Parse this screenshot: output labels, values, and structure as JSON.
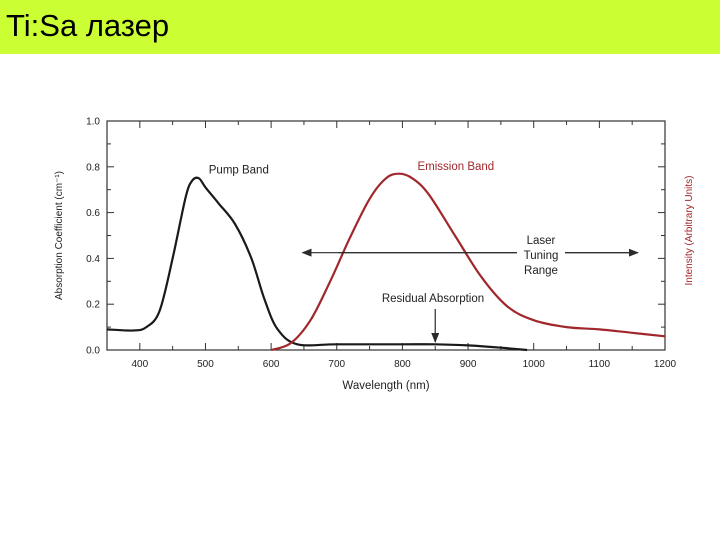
{
  "slide": {
    "title": "Ti:Sa лазер",
    "title_bar_color": "#ccff33"
  },
  "chart_data": {
    "type": "line",
    "xlabel": "Wavelength (nm)",
    "ylabel_left": "Absorption Coefficient (cm⁻¹)",
    "ylabel_right": "Intensity (Arbitrary Units)",
    "xlim": [
      350,
      1200
    ],
    "ylim": [
      0,
      1.0
    ],
    "x_ticks": [
      400,
      500,
      600,
      700,
      800,
      900,
      1000,
      1100,
      1200
    ],
    "y_ticks": [
      0.0,
      0.2,
      0.4,
      0.6,
      0.8,
      1.0
    ],
    "y_tick_labels": [
      "0.0",
      "0.2",
      "0.4",
      "0.6",
      "0.8",
      "1.0"
    ],
    "grid": false,
    "series": [
      {
        "name": "Pump Band",
        "color": "#1a1a1a",
        "x": [
          350,
          390,
          410,
          430,
          450,
          470,
          480,
          490,
          500,
          520,
          545,
          570,
          590,
          610,
          640,
          700,
          800,
          850,
          900,
          950,
          990
        ],
        "y": [
          0.09,
          0.085,
          0.1,
          0.17,
          0.4,
          0.67,
          0.74,
          0.75,
          0.71,
          0.64,
          0.55,
          0.4,
          0.22,
          0.09,
          0.025,
          0.025,
          0.025,
          0.025,
          0.02,
          0.01,
          0.0
        ]
      },
      {
        "name": "Emission Band",
        "color": "#a0282c",
        "x": [
          600,
          630,
          660,
          690,
          720,
          750,
          775,
          795,
          815,
          840,
          880,
          920,
          960,
          1000,
          1050,
          1100,
          1150,
          1200
        ],
        "y": [
          0.0,
          0.03,
          0.13,
          0.3,
          0.49,
          0.66,
          0.75,
          0.77,
          0.75,
          0.68,
          0.5,
          0.32,
          0.19,
          0.13,
          0.1,
          0.09,
          0.075,
          0.06
        ]
      }
    ],
    "annotations": {
      "pump_band": "Pump Band",
      "emission_band": "Emission Band",
      "laser_tuning_range_line1": "Laser",
      "laser_tuning_range_line2": "Tuning",
      "laser_tuning_range_line3": "Range",
      "laser_tuning_range_nm": [
        660,
        1180
      ],
      "residual_absorption": "Residual Absorption",
      "residual_absorption_nm": 850
    }
  }
}
